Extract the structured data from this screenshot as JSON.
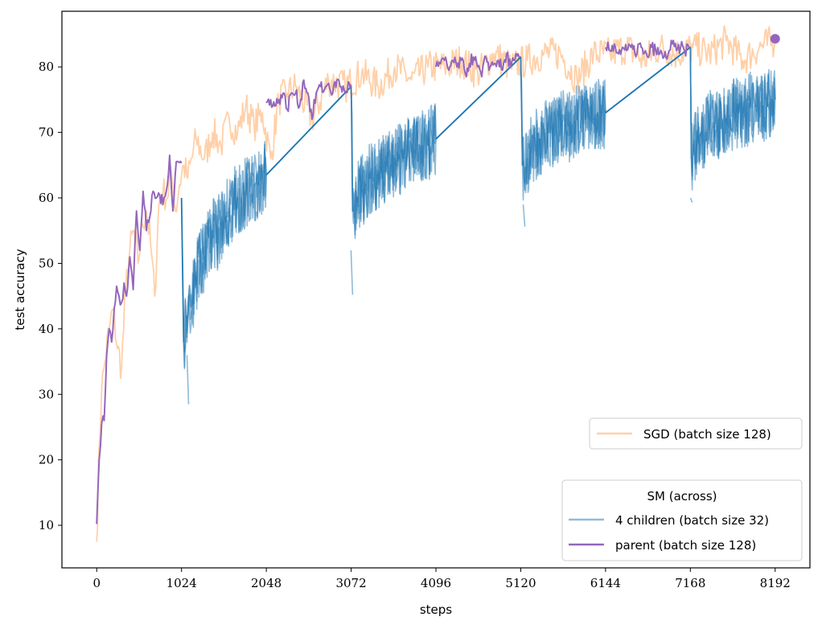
{
  "chart_data": {
    "type": "line",
    "xlabel": "steps",
    "ylabel": "test accuracy",
    "xlim": [
      -420,
      8612
    ],
    "ylim": [
      3.5,
      88.5
    ],
    "xticks": [
      0,
      1024,
      2048,
      3072,
      4096,
      5120,
      6144,
      7168,
      8192
    ],
    "xtick_labels": [
      "0",
      "1024",
      "2048",
      "3072",
      "4096",
      "5120",
      "6144",
      "7168",
      "8192"
    ],
    "yticks": [
      10,
      20,
      30,
      40,
      50,
      60,
      70,
      80
    ],
    "ytick_labels": [
      "10",
      "20",
      "30",
      "40",
      "50",
      "60",
      "70",
      "80"
    ],
    "grid": false,
    "colors": {
      "sgd": "#ffd0a8",
      "children": "#1f77b4",
      "parent": "#9467bd"
    },
    "sgd": {
      "name": "SGD (batch size 128)",
      "x": [
        0,
        30,
        60,
        100,
        150,
        200,
        250,
        300,
        350,
        400,
        450,
        500,
        550,
        600,
        650,
        700,
        750,
        800,
        850,
        900,
        950,
        1000,
        1050,
        1100,
        1200,
        1300,
        1400,
        1500,
        1600,
        1700,
        1800,
        1900,
        2000,
        2100,
        2200,
        2300,
        2400,
        2600,
        2800,
        3000,
        3200,
        3400,
        3600,
        3800,
        4000,
        4200,
        4400,
        4600,
        4800,
        5000,
        5200,
        5400,
        5600,
        5800,
        6000,
        6200,
        6400,
        6600,
        6800,
        7000,
        7200,
        7400,
        7600,
        7800,
        8000,
        8192
      ],
      "y": [
        7.5,
        22,
        31,
        35,
        40,
        43,
        37,
        34,
        46,
        52,
        55,
        50,
        56,
        58,
        53,
        45,
        59,
        61,
        60,
        64,
        58,
        62,
        65,
        63,
        69,
        66,
        70,
        68,
        72,
        70,
        74,
        71,
        73,
        66,
        75,
        76,
        77,
        72,
        78,
        77,
        79,
        77,
        80,
        78,
        80,
        80,
        81,
        79,
        82,
        80,
        81,
        82,
        82,
        78,
        82,
        82,
        83,
        81,
        83,
        82,
        83,
        82,
        84,
        81,
        83,
        84
      ]
    },
    "parent": {
      "name": "parent (batch size 128)",
      "segments": [
        {
          "x": [
            0,
            30,
            60,
            90,
            120,
            150,
            180,
            210,
            240,
            270,
            300,
            330,
            360,
            400,
            440,
            480,
            520,
            560,
            600,
            640,
            680,
            720,
            760,
            800,
            840,
            880,
            920,
            960,
            1000,
            1024
          ],
          "y": [
            10.2,
            20,
            25.5,
            26,
            36,
            40,
            38,
            43,
            46.5,
            45,
            44,
            47,
            45,
            51,
            46,
            58,
            52,
            61,
            55,
            57,
            61,
            60,
            60.5,
            59,
            61,
            66.5,
            58,
            65.5,
            65.4,
            65.3
          ]
        },
        {
          "x": [
            2048,
            2100,
            2150,
            2200,
            2250,
            2300,
            2350,
            2400,
            2450,
            2500,
            2550,
            2600,
            2650,
            2700,
            2750,
            2800,
            2850,
            2900,
            2950,
            3000,
            3050,
            3072
          ],
          "y": [
            74.5,
            75,
            74,
            75,
            76,
            73.5,
            76,
            76,
            74,
            78,
            76,
            72,
            76,
            77,
            76.5,
            77.5,
            76,
            78,
            77,
            76,
            77.5,
            77.3
          ]
        },
        {
          "x": [
            4096,
            4150,
            4200,
            4250,
            4300,
            4350,
            4400,
            4450,
            4500,
            4550,
            4600,
            4650,
            4700,
            4750,
            4800,
            4850,
            4900,
            4950,
            5000,
            5050,
            5100,
            5120
          ],
          "y": [
            80,
            80.5,
            81,
            79.5,
            81,
            80,
            81,
            79,
            80.5,
            81.5,
            80,
            78.5,
            81.5,
            80,
            80.5,
            81,
            79.5,
            82,
            80,
            81,
            81.5,
            81.5
          ]
        },
        {
          "x": [
            6144,
            6200,
            6250,
            6300,
            6350,
            6400,
            6450,
            6500,
            6550,
            6600,
            6650,
            6700,
            6750,
            6800,
            6850,
            6900,
            6950,
            7000,
            7050,
            7100,
            7150,
            7168
          ],
          "y": [
            83,
            82.5,
            83.5,
            82,
            83,
            82.5,
            83,
            82,
            83.5,
            82,
            81.5,
            83,
            82.5,
            82,
            81.5,
            82,
            83.5,
            82.5,
            83,
            82.5,
            83,
            82.9
          ]
        }
      ],
      "final_point": {
        "x": 8192,
        "y": 84.3
      }
    },
    "children": {
      "name": "4 children (batch size 32)",
      "mean_segments": [
        {
          "x": [
            1024,
            1050,
            1080,
            1110,
            1150,
            1200,
            1250,
            1300,
            1350,
            1400,
            1450,
            1500,
            1550,
            1600,
            1650,
            1700,
            1750,
            1800,
            1850,
            1900,
            1950,
            2000,
            2048
          ],
          "y": [
            60,
            38,
            42,
            45,
            44,
            48,
            50,
            51,
            54,
            55,
            54,
            56,
            57,
            58,
            59,
            60,
            60,
            61,
            61,
            62,
            62,
            63,
            63.5
          ]
        },
        {
          "x": [
            2048,
            3072,
            3090,
            3110,
            3150,
            3200,
            3250,
            3300,
            3350,
            3400,
            3450,
            3500,
            3550,
            3600,
            3650,
            3700,
            3750,
            3800,
            3850,
            3900,
            3950,
            4000,
            4050,
            4096
          ],
          "y": [
            63.5,
            77,
            58,
            57,
            60,
            61,
            62,
            63,
            63,
            64,
            64,
            65,
            65,
            66,
            66,
            66,
            67,
            67,
            67,
            68,
            68,
            68,
            69,
            69
          ]
        },
        {
          "x": [
            4096,
            5120,
            5140,
            5160,
            5200,
            5250,
            5300,
            5350,
            5400,
            5450,
            5500,
            5550,
            5600,
            5650,
            5700,
            5750,
            5800,
            5850,
            5900,
            5950,
            6000,
            6050,
            6100,
            6144
          ],
          "y": [
            69,
            81.5,
            65,
            63,
            66,
            67,
            68,
            69,
            69,
            70,
            70,
            70,
            71,
            71,
            71,
            71,
            72,
            72,
            72,
            72,
            72,
            73,
            73,
            73
          ]
        },
        {
          "x": [
            6144,
            7168,
            7180,
            7200,
            7250,
            7300,
            7350,
            7400,
            7450,
            7500,
            7550,
            7600,
            7650,
            7700,
            7750,
            7800,
            7850,
            7900,
            7950,
            8000,
            8050,
            8100,
            8150,
            8192
          ],
          "y": [
            73,
            83,
            66,
            67,
            69,
            70,
            70,
            71,
            71,
            71,
            72,
            72,
            72,
            73,
            73,
            73,
            73,
            74,
            74,
            74,
            74,
            74,
            75,
            75
          ]
        }
      ],
      "min_marks": [
        {
          "x": 1110,
          "y": 28.5
        },
        {
          "x": 3090,
          "y": 45.2
        },
        {
          "x": 5170,
          "y": 55.6
        },
        {
          "x": 7190,
          "y": 59.3
        }
      ]
    },
    "legend": [
      {
        "placement": "lower-right-upper",
        "title": "",
        "entries": [
          {
            "label": "SGD (batch size 128)",
            "series": "sgd"
          }
        ]
      },
      {
        "placement": "lower-right",
        "title": "SM (across)",
        "entries": [
          {
            "label": "4 children (batch size 32)",
            "series": "children"
          },
          {
            "label": "parent (batch size 128)",
            "series": "parent"
          }
        ]
      }
    ]
  }
}
